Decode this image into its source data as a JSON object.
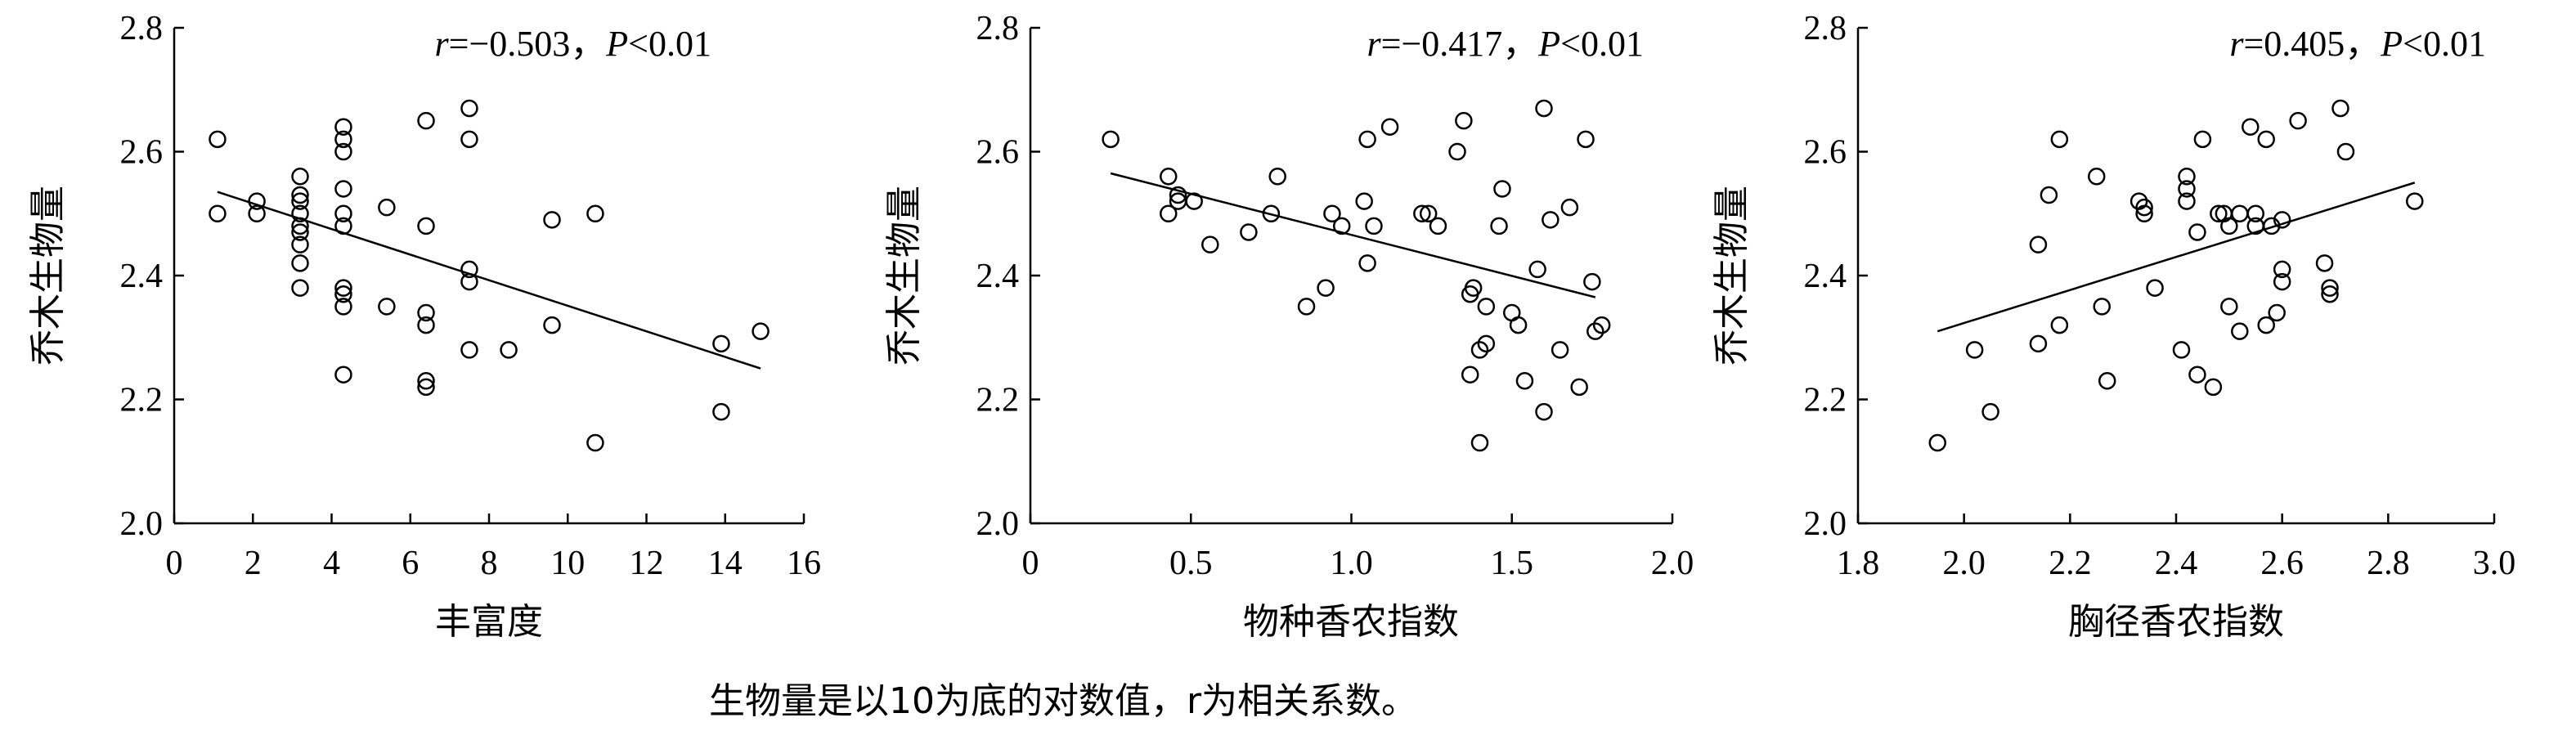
{
  "caption": "生物量是以10为底的对数值，r为相关系数。",
  "chart_data": [
    {
      "type": "scatter",
      "xlabel": "丰富度",
      "ylabel": "乔木生物量",
      "xlim": [
        0,
        16
      ],
      "ylim": [
        2.0,
        2.8
      ],
      "xticks": [
        "0",
        "2",
        "4",
        "6",
        "8",
        "10",
        "12",
        "14",
        "16"
      ],
      "yticks": [
        "2.0",
        "2.2",
        "2.4",
        "2.6",
        "2.8"
      ],
      "annotation": {
        "r_label": "r",
        "r_value": "=−0.503，",
        "p_label": "P",
        "p_value": "<0.01"
      },
      "fit_line": {
        "x": [
          1.1,
          14.9
        ],
        "y": [
          2.535,
          2.25
        ]
      },
      "points": [
        [
          1.1,
          2.62
        ],
        [
          1.1,
          2.5
        ],
        [
          2.1,
          2.52
        ],
        [
          2.1,
          2.5
        ],
        [
          3.2,
          2.56
        ],
        [
          3.2,
          2.53
        ],
        [
          3.2,
          2.52
        ],
        [
          3.2,
          2.5
        ],
        [
          3.2,
          2.48
        ],
        [
          3.2,
          2.47
        ],
        [
          3.2,
          2.45
        ],
        [
          3.2,
          2.42
        ],
        [
          3.2,
          2.38
        ],
        [
          4.3,
          2.64
        ],
        [
          4.3,
          2.62
        ],
        [
          4.3,
          2.6
        ],
        [
          4.3,
          2.54
        ],
        [
          4.3,
          2.5
        ],
        [
          4.3,
          2.48
        ],
        [
          4.3,
          2.38
        ],
        [
          4.3,
          2.37
        ],
        [
          4.3,
          2.35
        ],
        [
          4.3,
          2.24
        ],
        [
          5.4,
          2.51
        ],
        [
          5.4,
          2.35
        ],
        [
          6.4,
          2.65
        ],
        [
          6.4,
          2.48
        ],
        [
          6.4,
          2.34
        ],
        [
          6.4,
          2.32
        ],
        [
          6.4,
          2.23
        ],
        [
          6.4,
          2.22
        ],
        [
          7.5,
          2.67
        ],
        [
          7.5,
          2.62
        ],
        [
          7.5,
          2.41
        ],
        [
          7.5,
          2.39
        ],
        [
          7.5,
          2.28
        ],
        [
          8.5,
          2.28
        ],
        [
          9.6,
          2.49
        ],
        [
          9.6,
          2.32
        ],
        [
          10.7,
          2.5
        ],
        [
          10.7,
          2.13
        ],
        [
          13.9,
          2.29
        ],
        [
          13.9,
          2.18
        ],
        [
          14.9,
          2.31
        ]
      ]
    },
    {
      "type": "scatter",
      "xlabel": "物种香农指数",
      "ylabel": "乔木生物量",
      "xlim": [
        0,
        2.0
      ],
      "ylim": [
        2.0,
        2.8
      ],
      "xticks": [
        "0",
        "0.5",
        "1.0",
        "1.5",
        "2.0"
      ],
      "yticks": [
        "2.0",
        "2.2",
        "2.4",
        "2.6",
        "2.8"
      ],
      "annotation": {
        "r_label": "r",
        "r_value": "=−0.417，",
        "p_label": "P",
        "p_value": "<0.01"
      },
      "fit_line": {
        "x": [
          0.25,
          1.76
        ],
        "y": [
          2.565,
          2.365
        ]
      },
      "points": [
        [
          0.25,
          2.62
        ],
        [
          0.43,
          2.56
        ],
        [
          0.43,
          2.5
        ],
        [
          0.46,
          2.53
        ],
        [
          0.46,
          2.52
        ],
        [
          0.51,
          2.52
        ],
        [
          0.56,
          2.45
        ],
        [
          0.68,
          2.47
        ],
        [
          0.75,
          2.5
        ],
        [
          0.77,
          2.56
        ],
        [
          0.86,
          2.35
        ],
        [
          0.92,
          2.38
        ],
        [
          0.94,
          2.5
        ],
        [
          0.97,
          2.48
        ],
        [
          1.04,
          2.52
        ],
        [
          1.05,
          2.62
        ],
        [
          1.05,
          2.42
        ],
        [
          1.07,
          2.48
        ],
        [
          1.12,
          2.64
        ],
        [
          1.22,
          2.5
        ],
        [
          1.24,
          2.5
        ],
        [
          1.27,
          2.48
        ],
        [
          1.33,
          2.6
        ],
        [
          1.35,
          2.65
        ],
        [
          1.37,
          2.37
        ],
        [
          1.37,
          2.24
        ],
        [
          1.38,
          2.38
        ],
        [
          1.4,
          2.28
        ],
        [
          1.4,
          2.13
        ],
        [
          1.42,
          2.29
        ],
        [
          1.42,
          2.35
        ],
        [
          1.46,
          2.48
        ],
        [
          1.47,
          2.54
        ],
        [
          1.5,
          2.34
        ],
        [
          1.52,
          2.32
        ],
        [
          1.54,
          2.23
        ],
        [
          1.58,
          2.41
        ],
        [
          1.6,
          2.67
        ],
        [
          1.6,
          2.18
        ],
        [
          1.62,
          2.49
        ],
        [
          1.65,
          2.28
        ],
        [
          1.68,
          2.51
        ],
        [
          1.71,
          2.22
        ],
        [
          1.73,
          2.62
        ],
        [
          1.75,
          2.39
        ],
        [
          1.76,
          2.31
        ],
        [
          1.78,
          2.32
        ]
      ]
    },
    {
      "type": "scatter",
      "xlabel": "胸径香农指数",
      "ylabel": "乔木生物量",
      "xlim": [
        1.8,
        3.0
      ],
      "ylim": [
        2.0,
        2.8
      ],
      "xticks": [
        "1.8",
        "2.0",
        "2.2",
        "2.4",
        "2.6",
        "2.8",
        "3.0"
      ],
      "yticks": [
        "2.0",
        "2.2",
        "2.4",
        "2.6",
        "2.8"
      ],
      "annotation": {
        "r_label": "r",
        "r_value": "=0.405，",
        "p_label": "P",
        "p_value": "<0.01"
      },
      "fit_line": {
        "x": [
          1.95,
          2.85
        ],
        "y": [
          2.31,
          2.55
        ]
      },
      "points": [
        [
          1.95,
          2.13
        ],
        [
          2.02,
          2.28
        ],
        [
          2.05,
          2.18
        ],
        [
          2.14,
          2.45
        ],
        [
          2.14,
          2.29
        ],
        [
          2.16,
          2.53
        ],
        [
          2.18,
          2.62
        ],
        [
          2.18,
          2.32
        ],
        [
          2.25,
          2.56
        ],
        [
          2.26,
          2.35
        ],
        [
          2.27,
          2.23
        ],
        [
          2.33,
          2.52
        ],
        [
          2.34,
          2.51
        ],
        [
          2.34,
          2.5
        ],
        [
          2.36,
          2.38
        ],
        [
          2.41,
          2.28
        ],
        [
          2.42,
          2.56
        ],
        [
          2.42,
          2.54
        ],
        [
          2.42,
          2.52
        ],
        [
          2.44,
          2.24
        ],
        [
          2.44,
          2.47
        ],
        [
          2.45,
          2.62
        ],
        [
          2.47,
          2.22
        ],
        [
          2.48,
          2.5
        ],
        [
          2.49,
          2.5
        ],
        [
          2.5,
          2.48
        ],
        [
          2.5,
          2.35
        ],
        [
          2.52,
          2.31
        ],
        [
          2.52,
          2.5
        ],
        [
          2.54,
          2.64
        ],
        [
          2.55,
          2.5
        ],
        [
          2.55,
          2.48
        ],
        [
          2.57,
          2.62
        ],
        [
          2.57,
          2.32
        ],
        [
          2.58,
          2.48
        ],
        [
          2.59,
          2.34
        ],
        [
          2.6,
          2.49
        ],
        [
          2.6,
          2.41
        ],
        [
          2.6,
          2.39
        ],
        [
          2.63,
          2.65
        ],
        [
          2.68,
          2.42
        ],
        [
          2.69,
          2.37
        ],
        [
          2.69,
          2.38
        ],
        [
          2.71,
          2.67
        ],
        [
          2.72,
          2.6
        ],
        [
          2.85,
          2.52
        ]
      ]
    }
  ]
}
